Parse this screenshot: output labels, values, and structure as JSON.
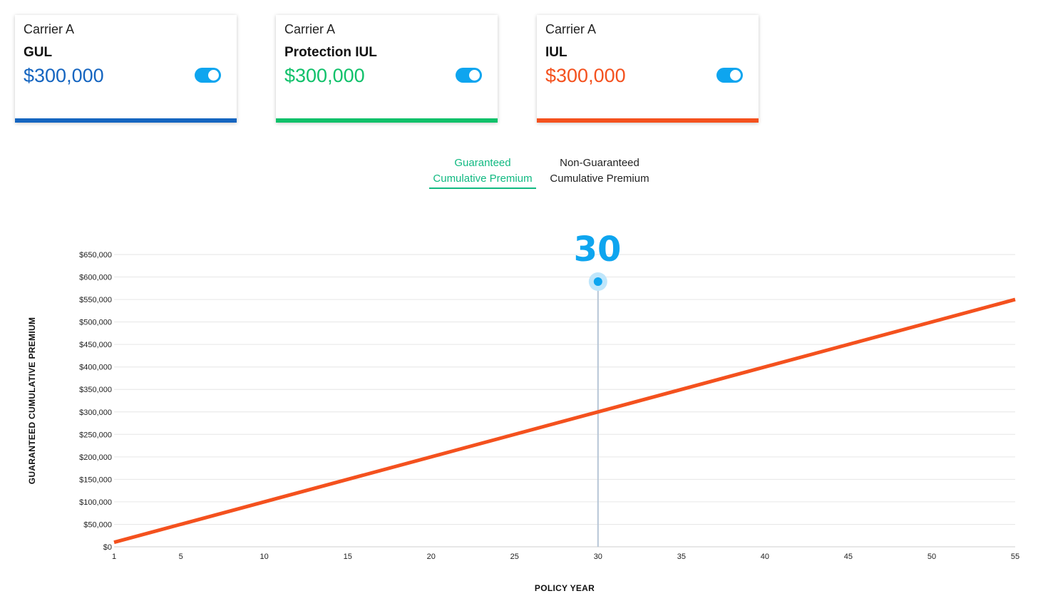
{
  "cards": [
    {
      "carrier": "Carrier A",
      "product": "GUL",
      "amount": "$300,000",
      "color": "#1565c0",
      "toggle_on": true
    },
    {
      "carrier": "Carrier A",
      "product": "Protection IUL",
      "amount": "$300,000",
      "color": "#10c16a",
      "toggle_on": true
    },
    {
      "carrier": "Carrier A",
      "product": "IUL",
      "amount": "$300,000",
      "color": "#f4511e",
      "toggle_on": true
    }
  ],
  "tabs": {
    "guaranteed": {
      "line1": "Guaranteed",
      "line2": "Cumulative Premium",
      "active": true
    },
    "non_guaranteed": {
      "line1": "Non-Guaranteed",
      "line2": "Cumulative Premium",
      "active": false
    }
  },
  "colors": {
    "accent": "#0ea5ef",
    "series": "#f4511e",
    "active_tab": "#10b981"
  },
  "chart_data": {
    "type": "line",
    "xlabel": "POLICY YEAR",
    "ylabel": "GUARANTEED CUMULATIVE PREMIUM",
    "xlim": [
      1,
      55
    ],
    "ylim": [
      0,
      650000
    ],
    "x_ticks": [
      1,
      5,
      10,
      15,
      20,
      25,
      30,
      35,
      40,
      45,
      50,
      55
    ],
    "y_ticks": [
      0,
      50000,
      100000,
      150000,
      200000,
      250000,
      300000,
      350000,
      400000,
      450000,
      500000,
      550000,
      600000,
      650000
    ],
    "y_tick_labels": [
      "$0",
      "$50,000",
      "$100,000",
      "$150,000",
      "$200,000",
      "$250,000",
      "$300,000",
      "$350,000",
      "$400,000",
      "$450,000",
      "$500,000",
      "$550,000",
      "$600,000",
      "$650,000"
    ],
    "grid": true,
    "series": [
      {
        "color": "#f4511e",
        "x": [
          1,
          55
        ],
        "y": [
          10000,
          550000
        ]
      }
    ],
    "selected_year": 30,
    "selected_label": "30"
  }
}
